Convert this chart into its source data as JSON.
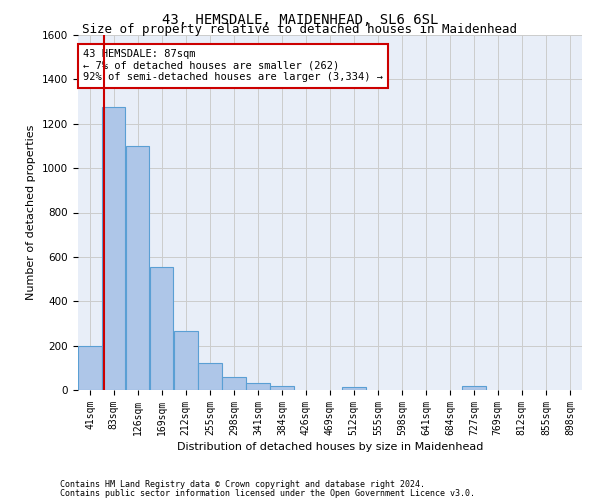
{
  "title": "43, HEMSDALE, MAIDENHEAD, SL6 6SL",
  "subtitle": "Size of property relative to detached houses in Maidenhead",
  "xlabel": "Distribution of detached houses by size in Maidenhead",
  "ylabel": "Number of detached properties",
  "footer_line1": "Contains HM Land Registry data © Crown copyright and database right 2024.",
  "footer_line2": "Contains public sector information licensed under the Open Government Licence v3.0.",
  "bar_labels": [
    "41sqm",
    "83sqm",
    "126sqm",
    "169sqm",
    "212sqm",
    "255sqm",
    "298sqm",
    "341sqm",
    "384sqm",
    "426sqm",
    "469sqm",
    "512sqm",
    "555sqm",
    "598sqm",
    "641sqm",
    "684sqm",
    "727sqm",
    "769sqm",
    "812sqm",
    "855sqm",
    "898sqm"
  ],
  "bar_values": [
    200,
    1275,
    1100,
    555,
    265,
    120,
    58,
    32,
    20,
    0,
    0,
    15,
    0,
    0,
    0,
    0,
    18,
    0,
    0,
    0,
    0
  ],
  "bar_color": "#aec6e8",
  "bar_edgecolor": "#5a9fd4",
  "annotation_text_line1": "43 HEMSDALE: 87sqm",
  "annotation_text_line2": "← 7% of detached houses are smaller (262)",
  "annotation_text_line3": "92% of semi-detached houses are larger (3,334) →",
  "annotation_box_facecolor": "#ffffff",
  "annotation_box_edgecolor": "#cc0000",
  "vline_color": "#cc0000",
  "vline_x": 87,
  "ylim": [
    0,
    1600
  ],
  "yticks": [
    0,
    200,
    400,
    600,
    800,
    1000,
    1200,
    1400,
    1600
  ],
  "grid_color": "#cccccc",
  "background_color": "#e8eef8",
  "title_fontsize": 10,
  "subtitle_fontsize": 9,
  "tick_fontsize": 7,
  "ylabel_fontsize": 8,
  "xlabel_fontsize": 8,
  "annotation_fontsize": 7.5,
  "footer_fontsize": 6,
  "bin_starts": [
    41,
    83,
    126,
    169,
    212,
    255,
    298,
    341,
    384,
    426,
    469,
    512,
    555,
    598,
    641,
    684,
    727,
    769,
    812,
    855,
    898
  ],
  "bin_width": 43
}
